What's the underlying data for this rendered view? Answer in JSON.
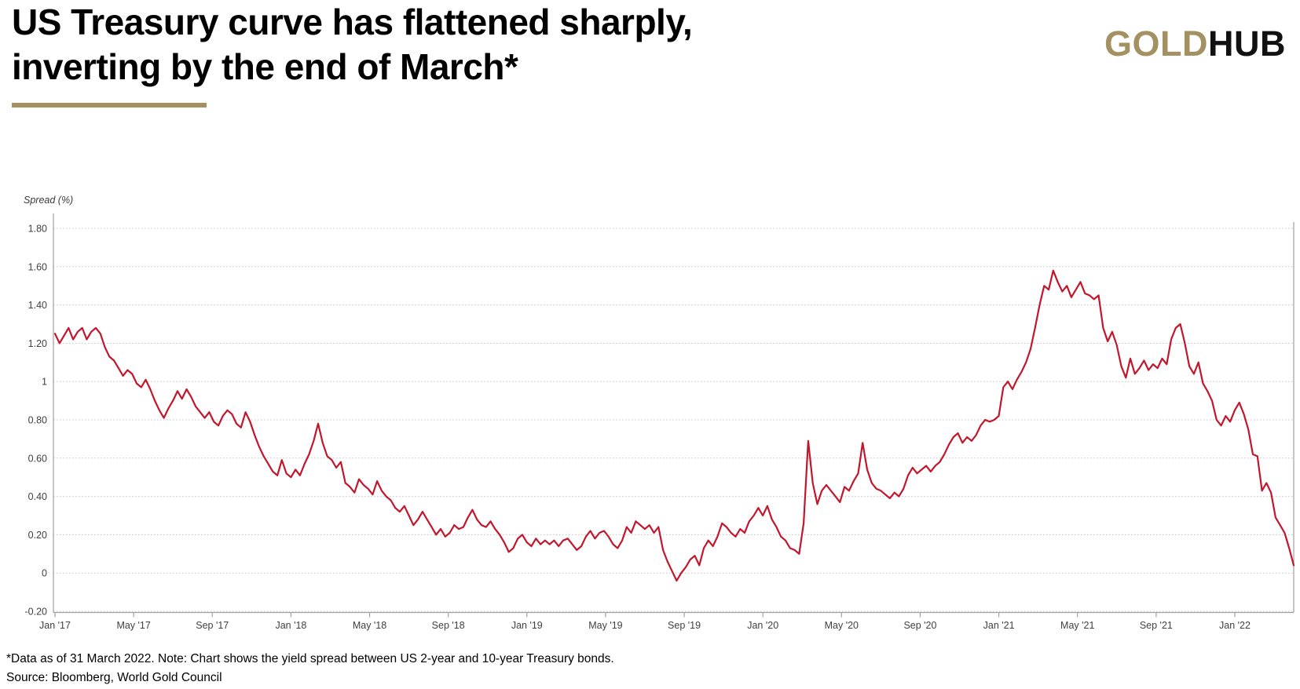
{
  "header": {
    "title_line1": "US Treasury curve has flattened sharply,",
    "title_line2": "inverting by the end of March*",
    "logo": {
      "gold": "GOLD",
      "hub": "HUB"
    }
  },
  "footer": {
    "note": "*Data as of 31 March 2022. Note: Chart shows the yield spread between US 2-year and 10-year Treasury bonds.",
    "source": "Source: Bloomberg, World Gold Council"
  },
  "colors": {
    "accent_gold": "#A39161",
    "line_red": "#C1162C",
    "grid_dotted": "#C4C4C4",
    "axis_line": "#A1A1A1",
    "tick_text": "#414042"
  },
  "chart_data": {
    "type": "line",
    "title": "",
    "ylabel": "Spread (%)",
    "series_name": "Yield spread between US 2-year and 10-year Treasury bonds",
    "frequency": "weekly",
    "start": "2017-01",
    "end": "2022-03-31",
    "ylim": [
      -0.2,
      1.8
    ],
    "y_tick_step": 0.2,
    "grid": "horizontal dotted",
    "legend": "none",
    "y_tick_labels": [
      "1.80",
      "1.60",
      "1.40",
      "1.20",
      "1",
      "0.80",
      "0.60",
      "0.40",
      "0.20",
      "0",
      "-0.20"
    ],
    "x_tick_labels": [
      "Jan '17",
      "May '17",
      "Sep '17",
      "Jan '18",
      "May '18",
      "Sep '18",
      "Jan '19",
      "May '19",
      "Sep '19",
      "Jan '20",
      "May '20",
      "Sep '20",
      "Jan '21",
      "May '21",
      "Sep '21",
      "Jan '22"
    ],
    "values": [
      1.25,
      1.2,
      1.24,
      1.28,
      1.22,
      1.26,
      1.28,
      1.22,
      1.26,
      1.28,
      1.25,
      1.18,
      1.13,
      1.11,
      1.07,
      1.03,
      1.06,
      1.04,
      0.99,
      0.97,
      1.01,
      0.96,
      0.9,
      0.85,
      0.81,
      0.86,
      0.9,
      0.95,
      0.91,
      0.96,
      0.92,
      0.87,
      0.84,
      0.81,
      0.84,
      0.79,
      0.77,
      0.82,
      0.85,
      0.83,
      0.78,
      0.76,
      0.84,
      0.79,
      0.72,
      0.66,
      0.61,
      0.57,
      0.53,
      0.51,
      0.59,
      0.52,
      0.5,
      0.54,
      0.51,
      0.57,
      0.62,
      0.69,
      0.78,
      0.68,
      0.61,
      0.59,
      0.55,
      0.58,
      0.47,
      0.45,
      0.42,
      0.49,
      0.46,
      0.44,
      0.41,
      0.48,
      0.43,
      0.4,
      0.38,
      0.34,
      0.32,
      0.35,
      0.3,
      0.25,
      0.28,
      0.32,
      0.28,
      0.24,
      0.2,
      0.23,
      0.19,
      0.21,
      0.25,
      0.23,
      0.24,
      0.29,
      0.33,
      0.28,
      0.25,
      0.24,
      0.27,
      0.23,
      0.2,
      0.16,
      0.11,
      0.13,
      0.18,
      0.2,
      0.16,
      0.14,
      0.18,
      0.15,
      0.17,
      0.15,
      0.17,
      0.14,
      0.17,
      0.18,
      0.15,
      0.12,
      0.14,
      0.19,
      0.22,
      0.18,
      0.21,
      0.22,
      0.19,
      0.15,
      0.13,
      0.17,
      0.24,
      0.21,
      0.27,
      0.25,
      0.23,
      0.25,
      0.21,
      0.24,
      0.12,
      0.06,
      0.01,
      -0.04,
      0.0,
      0.03,
      0.07,
      0.09,
      0.04,
      0.13,
      0.17,
      0.14,
      0.19,
      0.26,
      0.24,
      0.21,
      0.19,
      0.23,
      0.21,
      0.27,
      0.3,
      0.34,
      0.3,
      0.35,
      0.28,
      0.24,
      0.19,
      0.17,
      0.13,
      0.12,
      0.1,
      0.26,
      0.69,
      0.47,
      0.36,
      0.43,
      0.46,
      0.43,
      0.4,
      0.37,
      0.45,
      0.43,
      0.48,
      0.52,
      0.68,
      0.54,
      0.47,
      0.44,
      0.43,
      0.41,
      0.39,
      0.42,
      0.4,
      0.44,
      0.51,
      0.55,
      0.52,
      0.54,
      0.56,
      0.53,
      0.56,
      0.58,
      0.62,
      0.67,
      0.71,
      0.73,
      0.68,
      0.71,
      0.69,
      0.72,
      0.77,
      0.8,
      0.79,
      0.8,
      0.82,
      0.97,
      1.0,
      0.96,
      1.01,
      1.05,
      1.1,
      1.17,
      1.28,
      1.4,
      1.5,
      1.48,
      1.58,
      1.52,
      1.47,
      1.5,
      1.44,
      1.48,
      1.52,
      1.46,
      1.45,
      1.43,
      1.45,
      1.28,
      1.21,
      1.26,
      1.19,
      1.08,
      1.02,
      1.12,
      1.04,
      1.07,
      1.11,
      1.06,
      1.09,
      1.07,
      1.12,
      1.09,
      1.22,
      1.28,
      1.3,
      1.2,
      1.08,
      1.04,
      1.1,
      0.99,
      0.95,
      0.9,
      0.8,
      0.77,
      0.82,
      0.79,
      0.85,
      0.89,
      0.83,
      0.75,
      0.62,
      0.61,
      0.43,
      0.47,
      0.42,
      0.29,
      0.25,
      0.21,
      0.13,
      0.04
    ]
  }
}
